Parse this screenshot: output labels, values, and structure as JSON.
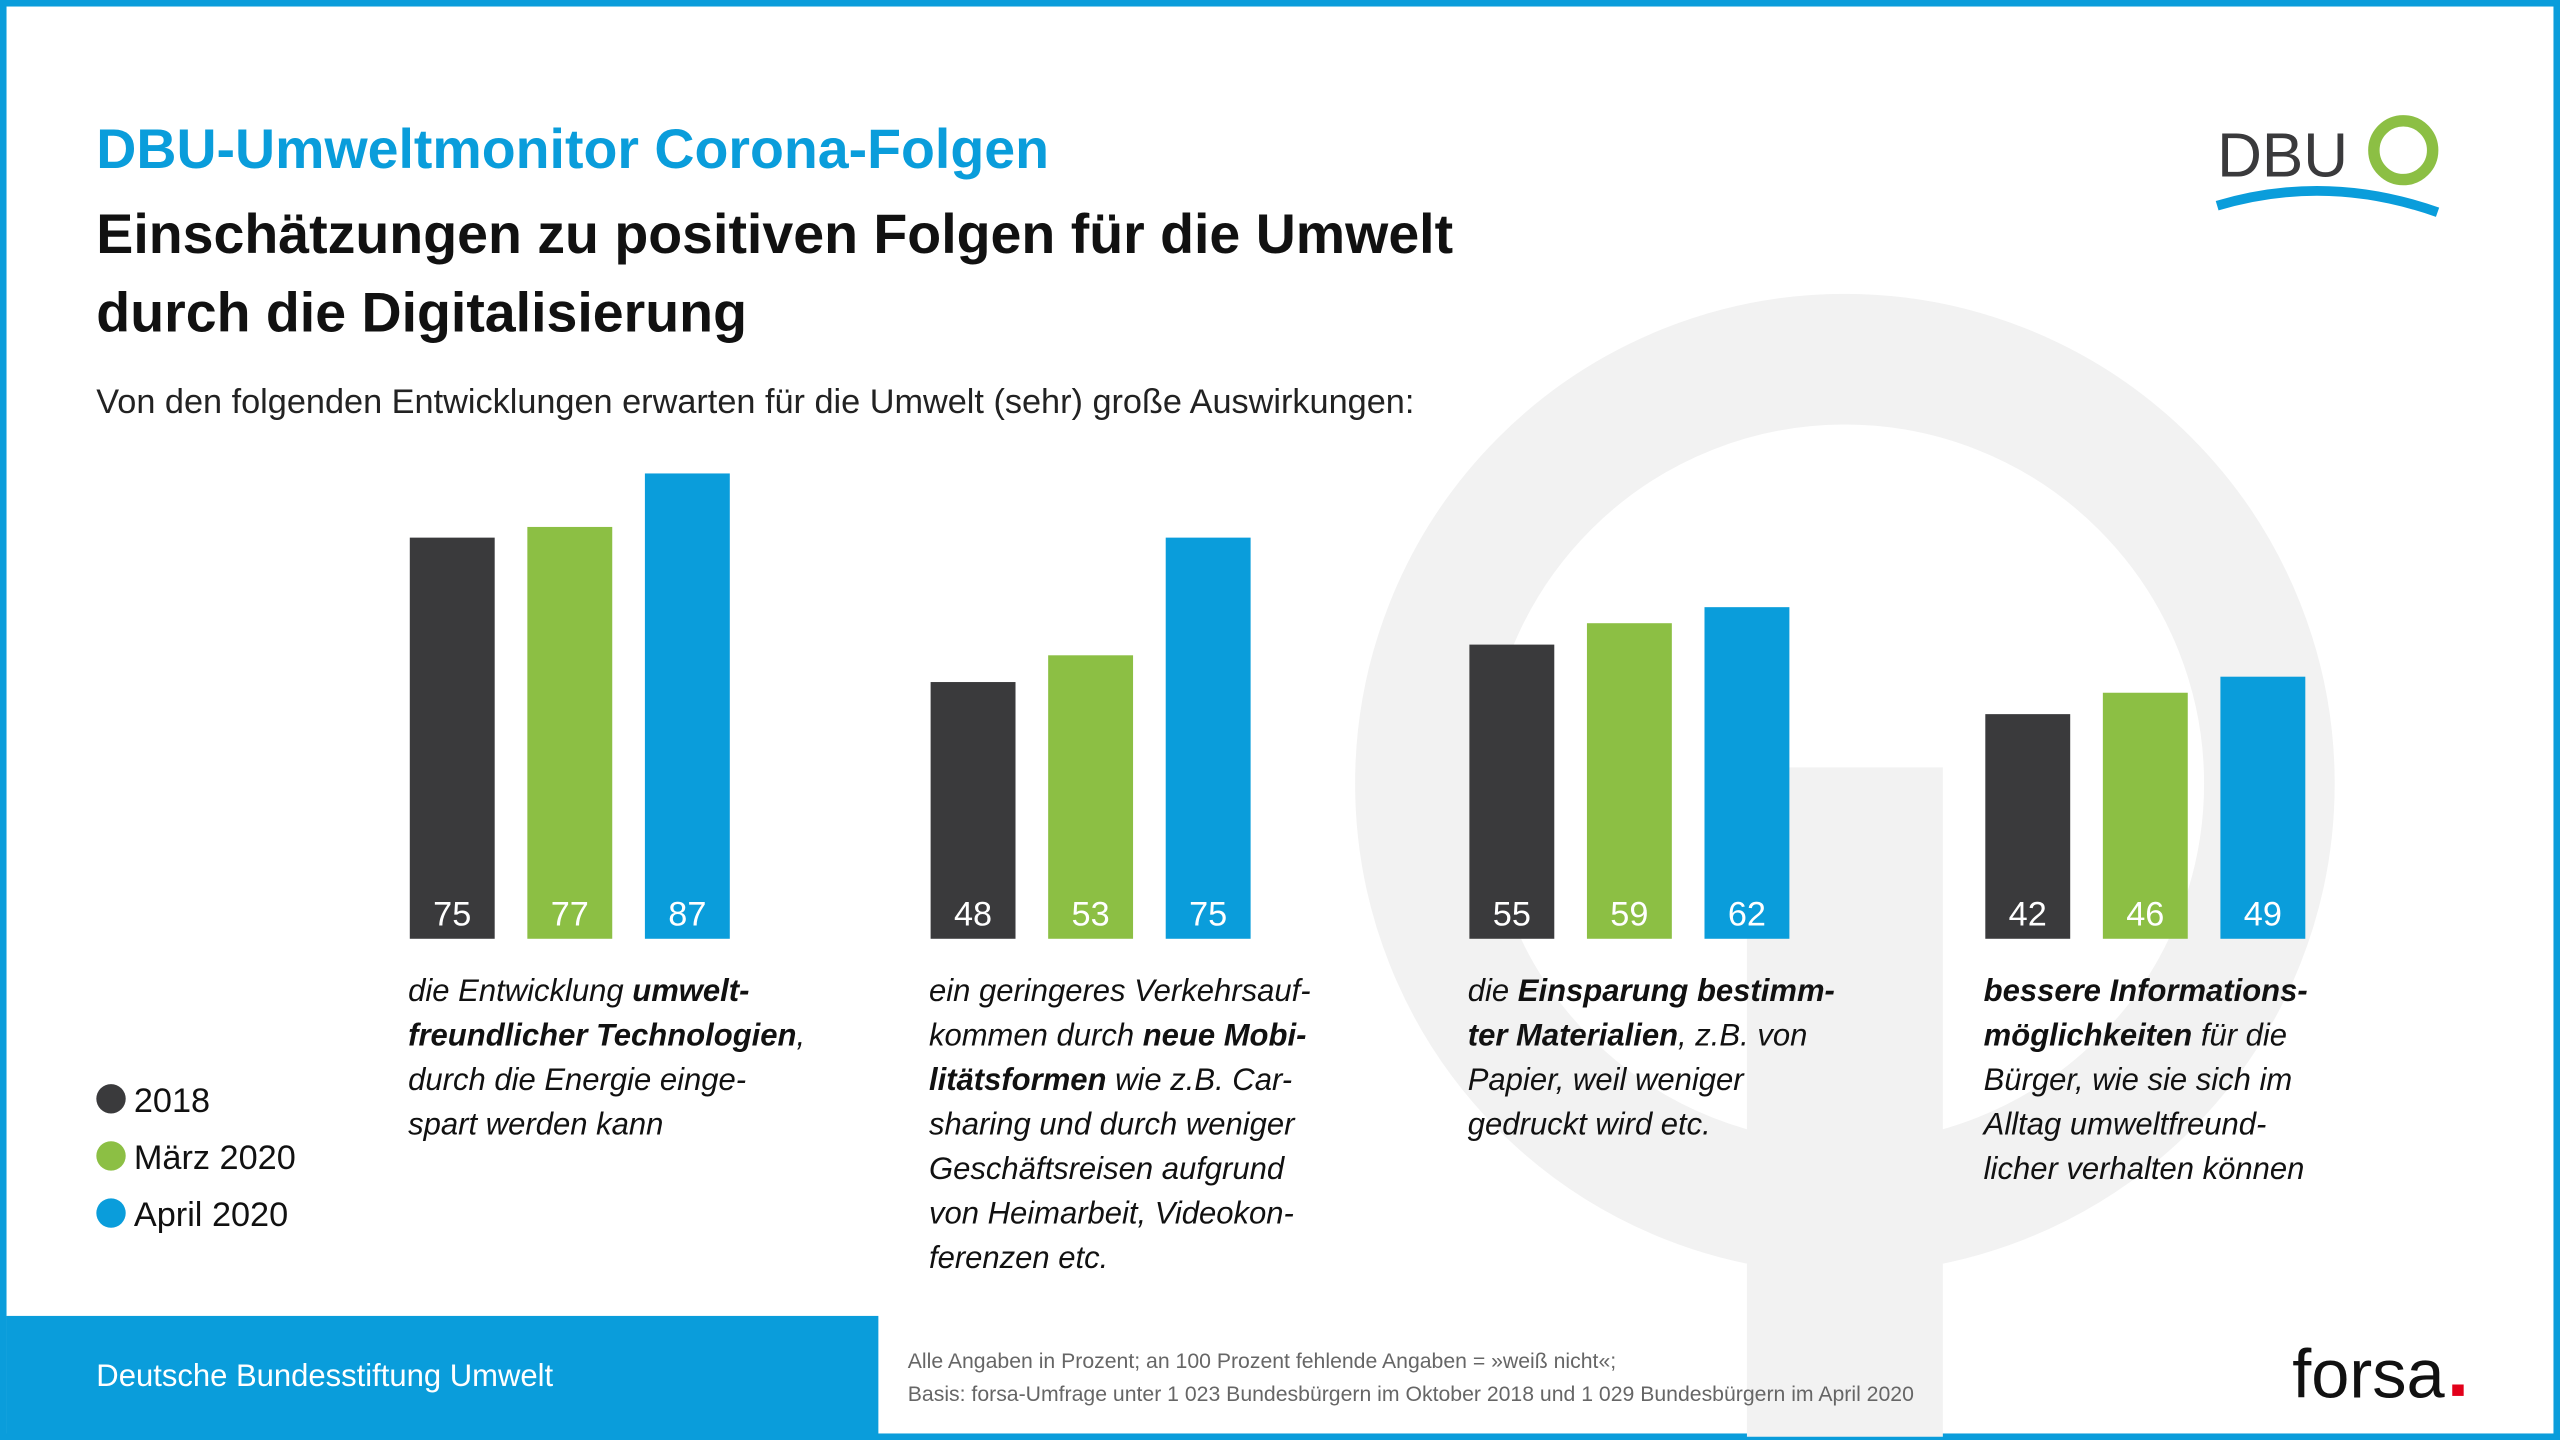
{
  "header": {
    "title": "DBU-Umweltmonitor Corona-Folgen",
    "subtitle_lines": [
      "Einschätzungen zu positiven Folgen für die Umwelt",
      "durch die Digitalisierung"
    ],
    "question": "Von den folgenden Entwicklungen erwarten für die Umwelt (sehr) große Auswirkungen:",
    "logo": "DBU"
  },
  "chart_data": {
    "type": "bar",
    "categories": [
      [
        [
          {
            "text": "die Entwicklung ",
            "bold": false
          },
          {
            "text": "umwelt-",
            "bold": true
          }
        ],
        [
          {
            "text": "freundlicher Technologien",
            "bold": true
          },
          {
            "text": ",",
            "bold": false
          }
        ],
        [
          {
            "text": "durch die Energie einge-",
            "bold": false
          }
        ],
        [
          {
            "text": "spart werden kann",
            "bold": false
          }
        ]
      ],
      [
        [
          {
            "text": "ein geringeres Verkehrsauf-",
            "bold": false
          }
        ],
        [
          {
            "text": "kommen durch ",
            "bold": false
          },
          {
            "text": "neue Mobi-",
            "bold": true
          }
        ],
        [
          {
            "text": "litätsformen",
            "bold": true
          },
          {
            "text": " wie z.B. Car-",
            "bold": false
          }
        ],
        [
          {
            "text": "sharing und durch weniger",
            "bold": false
          }
        ],
        [
          {
            "text": "Geschäftsreisen aufgrund",
            "bold": false
          }
        ],
        [
          {
            "text": "von Heimarbeit, Videokon-",
            "bold": false
          }
        ],
        [
          {
            "text": "ferenzen etc.",
            "bold": false
          }
        ]
      ],
      [
        [
          {
            "text": "die ",
            "bold": false
          },
          {
            "text": "Einsparung bestimm-",
            "bold": true
          }
        ],
        [
          {
            "text": "ter Materialien",
            "bold": true
          },
          {
            "text": ", z.B. von",
            "bold": false
          }
        ],
        [
          {
            "text": "Papier, weil weniger",
            "bold": false
          }
        ],
        [
          {
            "text": "gedruckt wird etc.",
            "bold": false
          }
        ]
      ],
      [
        [
          {
            "text": "bessere Informations-",
            "bold": true
          }
        ],
        [
          {
            "text": "möglichkeiten",
            "bold": true
          },
          {
            "text": " für die",
            "bold": false
          }
        ],
        [
          {
            "text": "Bürger, wie sie sich im",
            "bold": false
          }
        ],
        [
          {
            "text": "Alltag umweltfreund-",
            "bold": false
          }
        ],
        [
          {
            "text": "licher verhalten können",
            "bold": false
          }
        ]
      ]
    ],
    "series": [
      {
        "name": "2018",
        "color": "#3a3a3c",
        "values": [
          75,
          48,
          55,
          42
        ]
      },
      {
        "name": "März 2020",
        "color": "#8cbf44",
        "values": [
          77,
          53,
          59,
          46
        ]
      },
      {
        "name": "April 2020",
        "color": "#0a9ddb",
        "values": [
          87,
          75,
          62,
          49
        ]
      }
    ]
  },
  "footer": {
    "organisation": "Deutsche Bundesstiftung Umwelt",
    "notes": [
      "Alle Angaben in Prozent; an 100 Prozent fehlende Angaben = »weiß nicht«;",
      "Basis: forsa-Umfrage unter 1 023 Bundesbürgern im Oktober 2018 und 1 029 Bundesbürgern im April 2020"
    ],
    "source_logo": "forsa"
  }
}
